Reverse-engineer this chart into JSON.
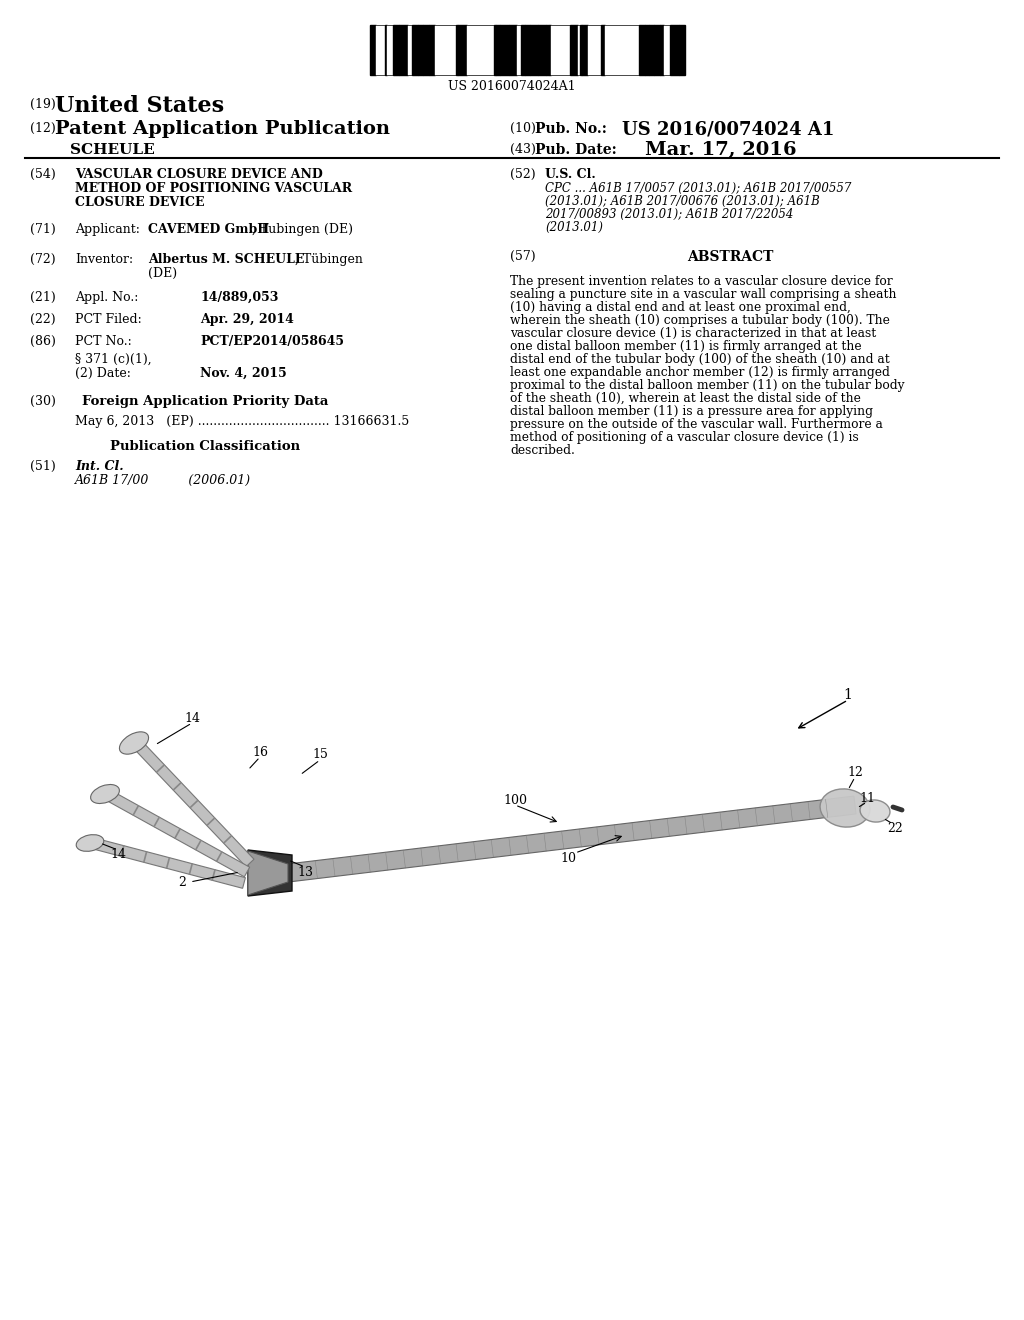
{
  "background_color": "#ffffff",
  "barcode_text": "US 20160074024A1",
  "patent_number_label": "(19)",
  "patent_number_text": "United States",
  "pub_label": "(12)",
  "pub_text": "Patent Application Publication",
  "pub_name": "SCHEULE",
  "pub_no_label": "(10)",
  "pub_no_text": "Pub. No.:",
  "pub_no_value": "US 2016/0074024 A1",
  "pub_date_label": "(43)",
  "pub_date_text": "Pub. Date:",
  "pub_date_value": "Mar. 17, 2016",
  "title_label": "(54)",
  "title_lines": [
    "VASCULAR CLOSURE DEVICE AND",
    "METHOD OF POSITIONING VASCULAR",
    "CLOSURE DEVICE"
  ],
  "usc_label": "(52)",
  "usc_text": "U.S. Cl.",
  "cpc_lines": [
    "CPC ... A61B 17/0057 (2013.01); A61B 2017/00557",
    "(2013.01); A61B 2017/00676 (2013.01); A61B",
    "2017/00893 (2013.01); A61B 2017/22054",
    "(2013.01)"
  ],
  "applicant_label": "(71)",
  "inventor_label": "(72)",
  "appl_label": "(21)",
  "pct_filed_label": "(22)",
  "pct_no_label": "(86)",
  "foreign_label": "(30)",
  "foreign_text": "Foreign Application Priority Data",
  "foreign_data": "May 6, 2013   (EP) .................................. 13166631.5",
  "pub_class_text": "Publication Classification",
  "int_cl_label": "(51)",
  "int_cl_text": "Int. Cl.",
  "int_cl_value": "A61B 17/00          (2006.01)",
  "abstract_label": "(57)",
  "abstract_title": "ABSTRACT",
  "abstract_text": "The present invention relates to a vascular closure device for sealing a puncture site in a vascular wall comprising a sheath (10) having a distal end and at least one proximal end, wherein the sheath (10) comprises a tubular body (100). The vascular closure device (1) is characterized in that at least one distal balloon member (11) is firmly arranged at the distal end of the tubular body (100) of the sheath (10) and at least one expandable anchor member (12) is firmly arranged proximal to the distal balloon member (11) on the tubular body of the sheath (10), wherein at least the distal side of the distal balloon member (11) is a pressure area for applying pressure on the outside of the vascular wall. Furthermore a method of positioning of a vascular closure device (1) is described."
}
